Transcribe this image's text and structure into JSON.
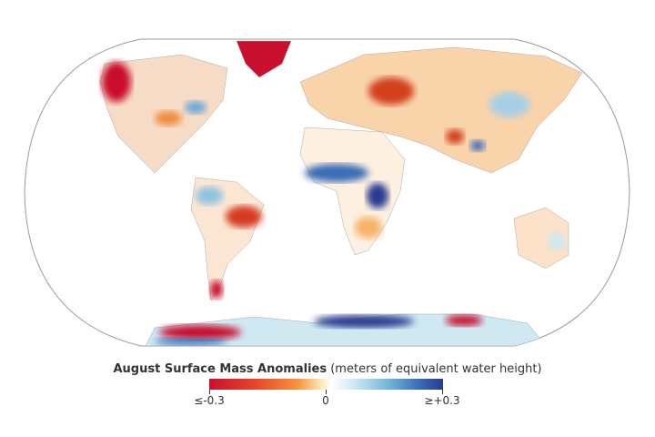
{
  "legend": {
    "title_bold": "August Surface Mass Anomalies",
    "title_units": "(meters of equivalent water height)",
    "ticks": [
      "≤-0.3",
      "0",
      "≥+0.3"
    ],
    "range": [
      -0.3,
      0.3
    ],
    "colors": {
      "negative": "#c8102e",
      "zero": "#ffffff",
      "positive": "#2b3a8f"
    }
  },
  "map": {
    "projection": "Robinson",
    "variable": "surface mass anomaly"
  }
}
